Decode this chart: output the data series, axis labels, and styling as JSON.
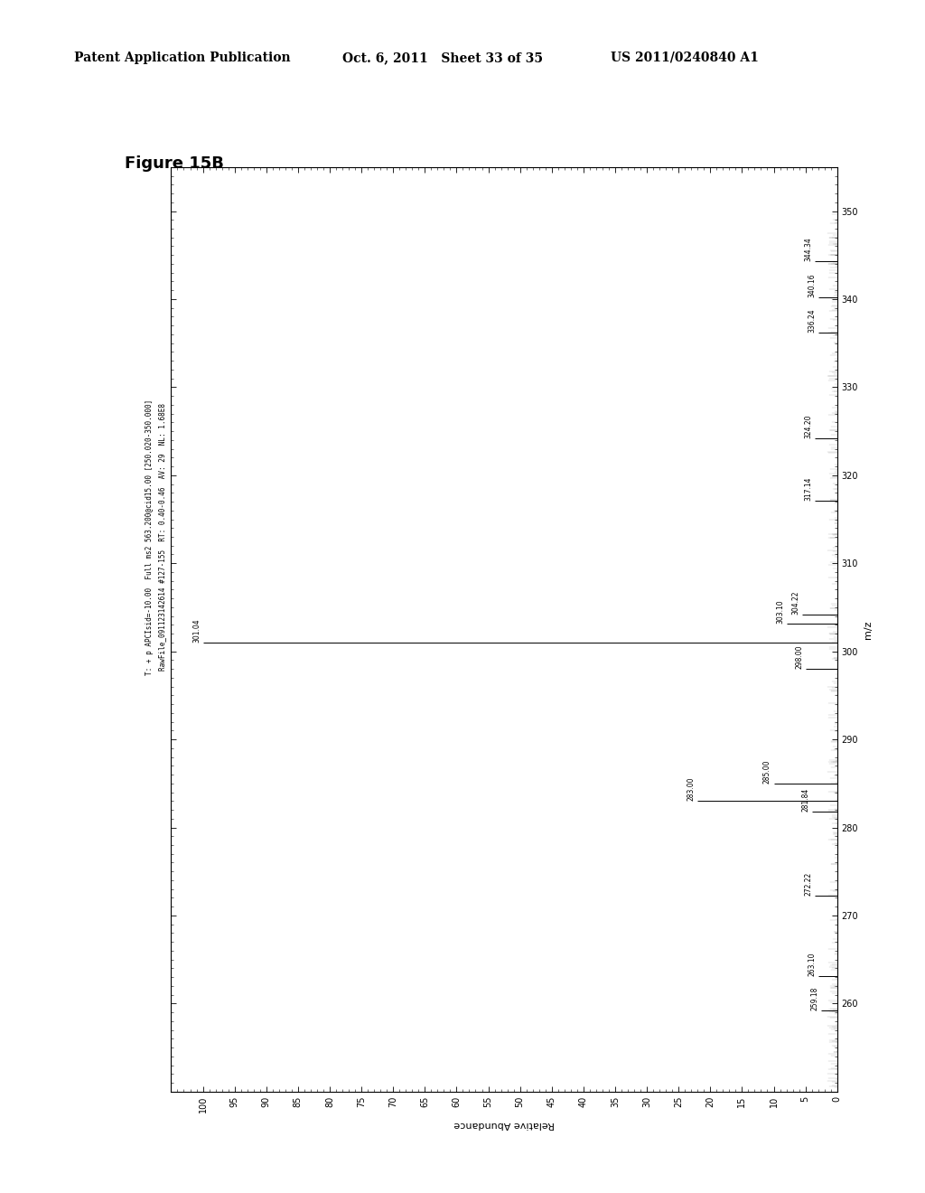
{
  "title_header_left": "Patent Application Publication",
  "title_header_mid": "Oct. 6, 2011   Sheet 33 of 35",
  "title_header_right": "US 2011/0240840 A1",
  "figure_label": "Figure 15B",
  "spectrum_info_line1": "RawFile_091123142614 #127-155  RT: 0.40-0.46  AV: 29  NL: 1.68E8",
  "spectrum_info_line2": "T: + p APCIsid=-10.00  Full ms2 563.200@cid15.00 [250.020-350.000]",
  "mz_label": "m/z",
  "abundance_label": "Relative Abundance",
  "mz_lim": [
    250,
    355
  ],
  "abundance_lim": [
    0,
    105
  ],
  "mz_ticks": [
    260,
    270,
    280,
    290,
    300,
    310,
    320,
    330,
    340,
    350
  ],
  "abundance_ticks": [
    0,
    5,
    10,
    15,
    20,
    25,
    30,
    35,
    40,
    45,
    50,
    55,
    60,
    65,
    70,
    75,
    80,
    85,
    90,
    95,
    100
  ],
  "peaks": [
    {
      "mz": 301.04,
      "intensity": 100.0,
      "label": "301.04"
    },
    {
      "mz": 283.0,
      "intensity": 22.0,
      "label": "283.00"
    },
    {
      "mz": 285.0,
      "intensity": 10.0,
      "label": "285.00"
    },
    {
      "mz": 259.18,
      "intensity": 2.5,
      "label": "259.18"
    },
    {
      "mz": 263.1,
      "intensity": 3.0,
      "label": "263.10"
    },
    {
      "mz": 272.22,
      "intensity": 3.5,
      "label": "272.22"
    },
    {
      "mz": 281.84,
      "intensity": 4.0,
      "label": "281.84"
    },
    {
      "mz": 298.0,
      "intensity": 5.0,
      "label": "298.00"
    },
    {
      "mz": 303.1,
      "intensity": 8.0,
      "label": "303.10"
    },
    {
      "mz": 304.22,
      "intensity": 5.5,
      "label": "304.22"
    },
    {
      "mz": 317.14,
      "intensity": 3.5,
      "label": "317.14"
    },
    {
      "mz": 324.2,
      "intensity": 3.5,
      "label": "324.20"
    },
    {
      "mz": 336.24,
      "intensity": 3.0,
      "label": "336.24"
    },
    {
      "mz": 340.16,
      "intensity": 3.0,
      "label": "340.16"
    },
    {
      "mz": 344.34,
      "intensity": 3.5,
      "label": "344.34"
    }
  ],
  "background_color": "#ffffff",
  "plot_bg_color": "#ffffff",
  "line_color": "#000000",
  "border_color": "#000000",
  "header_fontsize": 10,
  "figure_label_fontsize": 13,
  "axis_label_fontsize": 8,
  "tick_fontsize": 7,
  "peak_label_fontsize": 5.5,
  "info_fontsize": 5.5
}
